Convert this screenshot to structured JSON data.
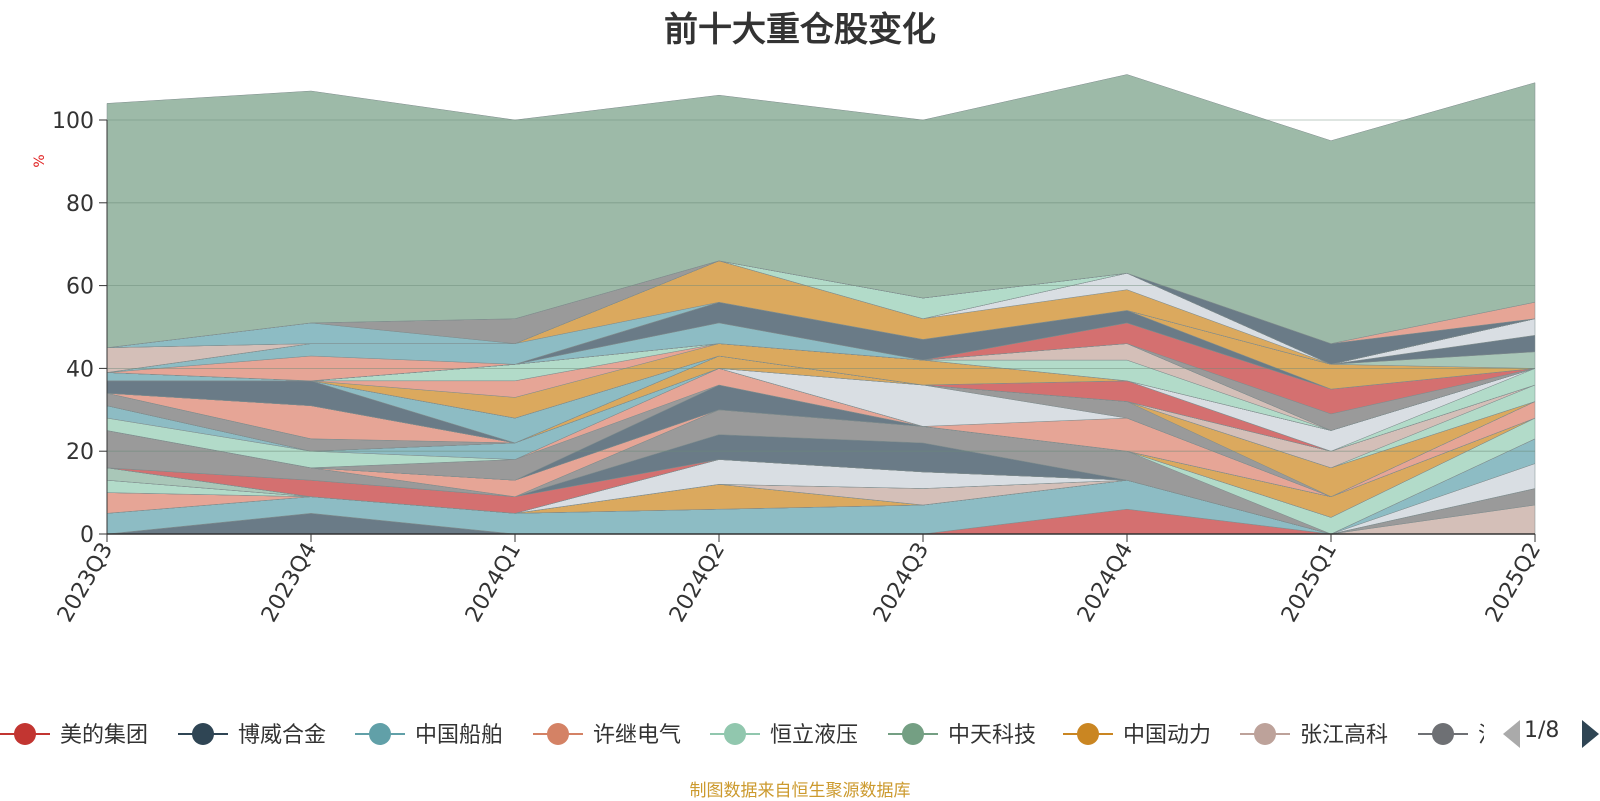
{
  "title": "前十大重仓股变化",
  "source_note": "制图数据来自恒生聚源数据库",
  "legend_pager": {
    "text": "1/8"
  },
  "chart_data": {
    "type": "area",
    "stacked": true,
    "title": "前十大重仓股变化",
    "ylabel": "%",
    "ylim": [
      0,
      100
    ],
    "yticks": [
      "0",
      "20",
      "40",
      "60",
      "80",
      "100"
    ],
    "categories": [
      "2023Q3",
      "2023Q4",
      "2024Q1",
      "2024Q2",
      "2024Q3",
      "2024Q4",
      "2025Q1",
      "2025Q2"
    ],
    "grid": true,
    "legend_placement": "bottom",
    "layers": [
      {
        "color": "#6a7b87",
        "values": [
          0,
          5,
          0,
          0,
          0,
          0,
          0,
          0
        ]
      },
      {
        "color": "#d47070",
        "values": [
          0,
          0,
          0,
          0,
          0,
          6,
          0,
          0
        ]
      },
      {
        "color": "#8dbcc4",
        "values": [
          5,
          4,
          5,
          6,
          7,
          7,
          0,
          0
        ]
      },
      {
        "color": "#d4bfb8",
        "values": [
          0,
          0,
          0,
          0,
          0,
          0,
          0,
          7
        ]
      },
      {
        "color": "#9a9a9a",
        "values": [
          0,
          0,
          0,
          0,
          0,
          0,
          0,
          4
        ]
      },
      {
        "color": "#e6a596",
        "values": [
          5,
          0,
          0,
          0,
          0,
          0,
          0,
          0
        ]
      },
      {
        "color": "#dba95e",
        "values": [
          0,
          0,
          0,
          6,
          0,
          0,
          0,
          0
        ]
      },
      {
        "color": "#b2dbc9",
        "values": [
          3,
          0,
          0,
          0,
          0,
          0,
          0,
          0
        ]
      },
      {
        "color": "#d4bfb8",
        "values": [
          0,
          0,
          0,
          0,
          4,
          0,
          0,
          0
        ]
      },
      {
        "color": "#a9c7b8",
        "values": [
          3,
          0,
          0,
          0,
          0,
          0,
          0,
          0
        ]
      },
      {
        "color": "#d9dee3",
        "values": [
          0,
          0,
          0,
          6,
          4,
          0,
          0,
          6
        ]
      },
      {
        "color": "#8dbcc4",
        "values": [
          0,
          0,
          0,
          0,
          0,
          0,
          0,
          6
        ]
      },
      {
        "color": "#d47070",
        "values": [
          0,
          4,
          4,
          0,
          0,
          0,
          0,
          0
        ]
      },
      {
        "color": "#6a7b87",
        "values": [
          0,
          0,
          0,
          6,
          7,
          0,
          0,
          0
        ]
      },
      {
        "color": "#9a9a9a",
        "values": [
          9,
          3,
          0,
          6,
          4,
          7,
          0,
          0
        ]
      },
      {
        "color": "#b2dbc9",
        "values": [
          0,
          0,
          0,
          0,
          0,
          0,
          4,
          5
        ]
      },
      {
        "color": "#e6a596",
        "values": [
          0,
          0,
          4,
          0,
          0,
          0,
          0,
          0
        ]
      },
      {
        "color": "#dba95e",
        "values": [
          0,
          0,
          0,
          0,
          0,
          0,
          5,
          0
        ]
      },
      {
        "color": "#6a7b87",
        "values": [
          0,
          0,
          0,
          6,
          0,
          0,
          0,
          0
        ]
      },
      {
        "color": "#9a9a9a",
        "values": [
          0,
          0,
          5,
          0,
          0,
          0,
          0,
          0
        ]
      },
      {
        "color": "#e6a596",
        "values": [
          0,
          0,
          0,
          4,
          0,
          0,
          0,
          0
        ]
      },
      {
        "color": "#b2dbc9",
        "values": [
          3,
          4,
          0,
          0,
          0,
          0,
          0,
          0
        ]
      },
      {
        "color": "#8dbcc4",
        "values": [
          3,
          0,
          4,
          0,
          0,
          0,
          0,
          0
        ]
      },
      {
        "color": "#e6a596",
        "values": [
          0,
          0,
          0,
          0,
          0,
          0,
          0,
          4
        ]
      },
      {
        "color": "#e6a596",
        "values": [
          0,
          0,
          0,
          0,
          0,
          8,
          0,
          0
        ]
      },
      {
        "color": "#d9dee3",
        "values": [
          0,
          0,
          0,
          0,
          10,
          0,
          0,
          0
        ]
      },
      {
        "color": "#9a9a9a",
        "values": [
          3,
          3,
          0,
          0,
          0,
          4,
          0,
          0
        ]
      },
      {
        "color": "#dba95e",
        "values": [
          0,
          0,
          0,
          3,
          0,
          0,
          7,
          0
        ]
      },
      {
        "color": "#e6a596",
        "values": [
          0,
          8,
          0,
          0,
          0,
          0,
          0,
          0
        ]
      },
      {
        "color": "#b2dbc9",
        "values": [
          0,
          0,
          0,
          0,
          0,
          0,
          0,
          4
        ]
      },
      {
        "color": "#d4bfb8",
        "values": [
          0,
          0,
          0,
          0,
          0,
          0,
          4,
          0
        ]
      },
      {
        "color": "#6a7b87",
        "values": [
          3,
          6,
          0,
          0,
          0,
          0,
          0,
          0
        ]
      },
      {
        "color": "#8dbcc4",
        "values": [
          0,
          0,
          6,
          0,
          0,
          0,
          0,
          0
        ]
      },
      {
        "color": "#d47070",
        "values": [
          0,
          0,
          0,
          0,
          0,
          5,
          0,
          0
        ]
      },
      {
        "color": "#b2dbc9",
        "values": [
          0,
          0,
          0,
          0,
          0,
          0,
          0,
          4
        ]
      },
      {
        "color": "#d9dee3",
        "values": [
          0,
          0,
          0,
          0,
          0,
          0,
          5,
          0
        ]
      },
      {
        "color": "#dba95e",
        "values": [
          0,
          0,
          5,
          3,
          6,
          0,
          0,
          0
        ]
      },
      {
        "color": "#e6a596",
        "values": [
          0,
          0,
          4,
          0,
          0,
          0,
          0,
          0
        ]
      },
      {
        "color": "#b2dbc9",
        "values": [
          0,
          0,
          4,
          0,
          0,
          5,
          0,
          0
        ]
      },
      {
        "color": "#d4bfb8",
        "values": [
          0,
          0,
          0,
          0,
          0,
          4,
          0,
          0
        ]
      },
      {
        "color": "#8dbcc4",
        "values": [
          2,
          0,
          0,
          0,
          0,
          0,
          0,
          0
        ]
      },
      {
        "color": "#9a9a9a",
        "values": [
          0,
          0,
          0,
          0,
          0,
          0,
          4,
          0
        ]
      },
      {
        "color": "#d47070",
        "values": [
          0,
          0,
          0,
          0,
          0,
          5,
          6,
          0
        ]
      },
      {
        "color": "#8dbcc4",
        "values": [
          0,
          0,
          0,
          5,
          0,
          0,
          0,
          0
        ]
      },
      {
        "color": "#6a7b87",
        "values": [
          0,
          0,
          0,
          5,
          5,
          3,
          0,
          0
        ]
      },
      {
        "color": "#dba95e",
        "values": [
          0,
          0,
          0,
          0,
          0,
          0,
          6,
          0
        ]
      },
      {
        "color": "#a9c7b8",
        "values": [
          0,
          0,
          0,
          0,
          0,
          0,
          0,
          4
        ]
      },
      {
        "color": "#6a7b87",
        "values": [
          0,
          0,
          0,
          0,
          0,
          0,
          0,
          4
        ]
      },
      {
        "color": "#d9dee3",
        "values": [
          0,
          0,
          0,
          0,
          0,
          0,
          0,
          4
        ]
      },
      {
        "color": "#e6a596",
        "values": [
          0,
          6,
          0,
          0,
          0,
          0,
          0,
          0
        ]
      },
      {
        "color": "#8dbcc4",
        "values": [
          0,
          3,
          5,
          0,
          0,
          0,
          0,
          0
        ]
      },
      {
        "color": "#dba95e",
        "values": [
          0,
          0,
          0,
          10,
          5,
          5,
          0,
          0
        ]
      },
      {
        "color": "#d9dee3",
        "values": [
          0,
          0,
          0,
          0,
          0,
          4,
          0,
          0
        ]
      },
      {
        "color": "#d4bfb8",
        "values": [
          6,
          0,
          0,
          0,
          0,
          0,
          0,
          0
        ]
      },
      {
        "color": "#b2dbc9",
        "values": [
          0,
          0,
          0,
          0,
          5,
          0,
          0,
          0
        ]
      },
      {
        "color": "#8dbcc4",
        "values": [
          0,
          5,
          0,
          0,
          0,
          0,
          0,
          0
        ]
      },
      {
        "color": "#9a9a9a",
        "values": [
          0,
          0,
          6,
          0,
          0,
          0,
          0,
          0
        ]
      },
      {
        "color": "#6a7b87",
        "values": [
          0,
          0,
          0,
          0,
          0,
          0,
          5,
          0
        ]
      },
      {
        "color": "#e6a596",
        "values": [
          0,
          0,
          0,
          0,
          0,
          0,
          0,
          4
        ]
      },
      {
        "color": "#9dbaa8",
        "values": [
          59,
          56,
          48,
          40,
          43,
          48,
          49,
          53
        ]
      }
    ]
  },
  "legend": {
    "items": [
      {
        "label": "美的集团",
        "color": "#c23531"
      },
      {
        "label": "博威合金",
        "color": "#2f4554"
      },
      {
        "label": "中国船舶",
        "color": "#61a0a8"
      },
      {
        "label": "许继电气",
        "color": "#d48265"
      },
      {
        "label": "恒立液压",
        "color": "#91c7ae"
      },
      {
        "label": "中天科技",
        "color": "#749f83"
      },
      {
        "label": "中国动力",
        "color": "#ca8622"
      },
      {
        "label": "张江高科",
        "color": "#bda29a"
      },
      {
        "label": "江",
        "color": "#6e7074"
      }
    ]
  }
}
